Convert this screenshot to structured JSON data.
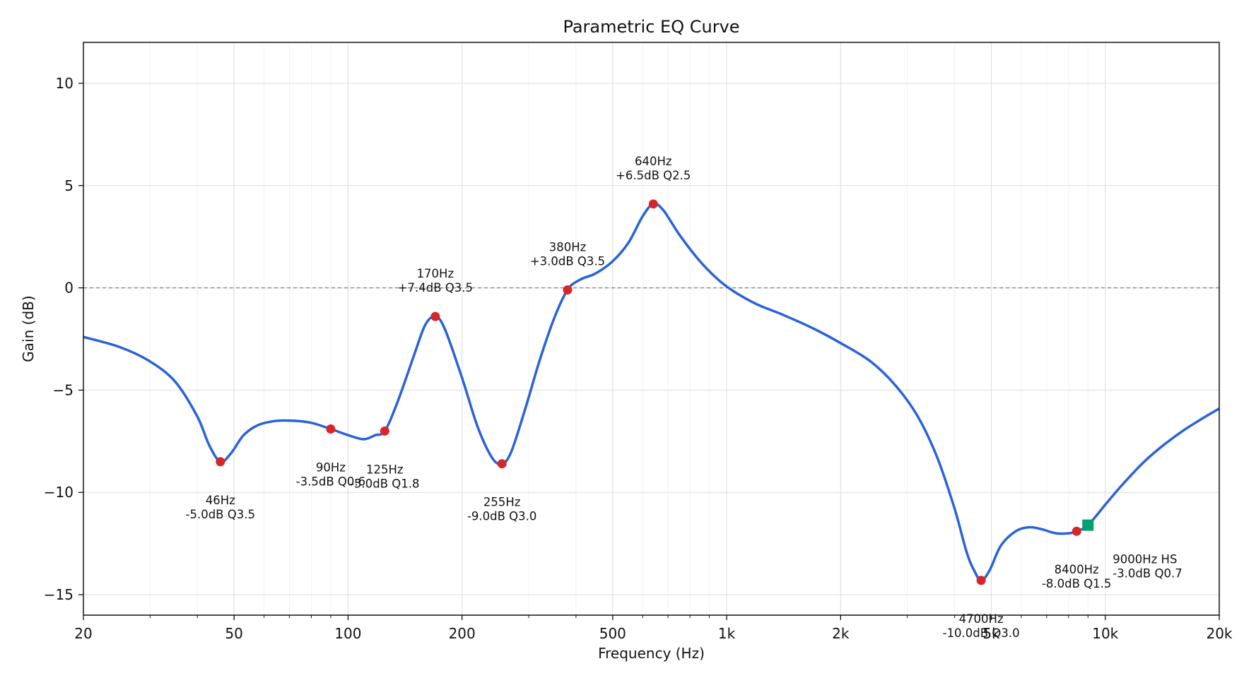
{
  "chart_data": {
    "type": "line",
    "title": "Parametric EQ Curve",
    "xlabel": "Frequency (Hz)",
    "ylabel": "Gain (dB)",
    "x_scale": "log",
    "xlim": [
      20,
      20000
    ],
    "ylim": [
      -16,
      12
    ],
    "x_ticks": [
      {
        "value": 20,
        "label": "20"
      },
      {
        "value": 50,
        "label": "50"
      },
      {
        "value": 100,
        "label": "100"
      },
      {
        "value": 200,
        "label": "200"
      },
      {
        "value": 500,
        "label": "500"
      },
      {
        "value": 1000,
        "label": "1k"
      },
      {
        "value": 2000,
        "label": "2k"
      },
      {
        "value": 5000,
        "label": "5k"
      },
      {
        "value": 10000,
        "label": "10k"
      },
      {
        "value": 20000,
        "label": "20k"
      }
    ],
    "y_ticks": [
      {
        "value": 10,
        "label": "10"
      },
      {
        "value": 5,
        "label": "5"
      },
      {
        "value": 0,
        "label": "0"
      },
      {
        "value": -5,
        "label": "−5"
      },
      {
        "value": -10,
        "label": "−10"
      },
      {
        "value": -15,
        "label": "−15"
      }
    ],
    "grid": true,
    "reference_line": {
      "y": 0,
      "style": "dashed"
    },
    "colors": {
      "curve": "#2962d9",
      "peak": "#d62728",
      "shelf": "#009e73",
      "grid": "#dddddd",
      "zero_line": "#888888"
    },
    "series": [
      {
        "points": [
          [
            20,
            -2.4
          ],
          [
            25,
            -2.9
          ],
          [
            30,
            -3.6
          ],
          [
            35,
            -4.6
          ],
          [
            40,
            -6.3
          ],
          [
            43,
            -7.7
          ],
          [
            46,
            -8.5
          ],
          [
            49,
            -8.1
          ],
          [
            53,
            -7.2
          ],
          [
            58,
            -6.7
          ],
          [
            65,
            -6.5
          ],
          [
            72,
            -6.5
          ],
          [
            80,
            -6.6
          ],
          [
            90,
            -6.9
          ],
          [
            100,
            -7.2
          ],
          [
            110,
            -7.4
          ],
          [
            118,
            -7.2
          ],
          [
            125,
            -7.0
          ],
          [
            135,
            -5.6
          ],
          [
            150,
            -3.2
          ],
          [
            160,
            -1.8
          ],
          [
            170,
            -1.4
          ],
          [
            180,
            -2.0
          ],
          [
            200,
            -4.4
          ],
          [
            220,
            -6.8
          ],
          [
            240,
            -8.3
          ],
          [
            255,
            -8.6
          ],
          [
            270,
            -8.0
          ],
          [
            295,
            -5.8
          ],
          [
            320,
            -3.6
          ],
          [
            350,
            -1.5
          ],
          [
            380,
            -0.1
          ],
          [
            410,
            0.4
          ],
          [
            450,
            0.7
          ],
          [
            500,
            1.3
          ],
          [
            550,
            2.2
          ],
          [
            600,
            3.5
          ],
          [
            640,
            4.1
          ],
          [
            680,
            3.8
          ],
          [
            750,
            2.6
          ],
          [
            850,
            1.3
          ],
          [
            950,
            0.4
          ],
          [
            1050,
            -0.2
          ],
          [
            1200,
            -0.8
          ],
          [
            1400,
            -1.3
          ],
          [
            1700,
            -2.0
          ],
          [
            2000,
            -2.7
          ],
          [
            2400,
            -3.6
          ],
          [
            2800,
            -4.8
          ],
          [
            3200,
            -6.3
          ],
          [
            3600,
            -8.3
          ],
          [
            4000,
            -10.8
          ],
          [
            4300,
            -12.9
          ],
          [
            4500,
            -13.8
          ],
          [
            4700,
            -14.3
          ],
          [
            4950,
            -13.8
          ],
          [
            5300,
            -12.6
          ],
          [
            5800,
            -11.9
          ],
          [
            6300,
            -11.7
          ],
          [
            6800,
            -11.8
          ],
          [
            7400,
            -12.0
          ],
          [
            8000,
            -12.0
          ],
          [
            8400,
            -11.9
          ],
          [
            9000,
            -11.6
          ],
          [
            10000,
            -10.6
          ],
          [
            11000,
            -9.7
          ],
          [
            12500,
            -8.6
          ],
          [
            14000,
            -7.8
          ],
          [
            16000,
            -7.0
          ],
          [
            18000,
            -6.4
          ],
          [
            20000,
            -5.9
          ]
        ]
      }
    ],
    "bands": [
      {
        "freq": 46,
        "y": -8.5,
        "label1": "46Hz",
        "label2": "-5.0dB Q3.5",
        "pos": "below",
        "marker": "circle"
      },
      {
        "freq": 90,
        "y": -6.9,
        "label1": "90Hz",
        "label2": "-3.5dB Q0.6",
        "pos": "below",
        "marker": "circle"
      },
      {
        "freq": 125,
        "y": -7.0,
        "label1": "125Hz",
        "label2": "-5.0dB Q1.8",
        "pos": "below",
        "marker": "circle"
      },
      {
        "freq": 170,
        "y": -1.4,
        "label1": "170Hz",
        "label2": "+7.4dB Q3.5",
        "pos": "above",
        "marker": "circle"
      },
      {
        "freq": 255,
        "y": -8.6,
        "label1": "255Hz",
        "label2": "-9.0dB Q3.0",
        "pos": "below",
        "marker": "circle"
      },
      {
        "freq": 380,
        "y": -0.1,
        "label1": "380Hz",
        "label2": "+3.0dB Q3.5",
        "pos": "above",
        "marker": "circle"
      },
      {
        "freq": 640,
        "y": 4.1,
        "label1": "640Hz",
        "label2": "+6.5dB Q2.5",
        "pos": "above",
        "marker": "circle"
      },
      {
        "freq": 4700,
        "y": -14.3,
        "label1": "4700Hz",
        "label2": "-10.0dB Q3.0",
        "pos": "below",
        "marker": "circle"
      },
      {
        "freq": 8400,
        "y": -11.9,
        "label1": "8400Hz",
        "label2": "-8.0dB Q1.5",
        "pos": "below",
        "marker": "circle"
      },
      {
        "freq": 9000,
        "y": -11.6,
        "label1": "9000Hz HS",
        "label2": "-3.0dB Q0.7",
        "pos": "right",
        "marker": "square"
      }
    ]
  }
}
